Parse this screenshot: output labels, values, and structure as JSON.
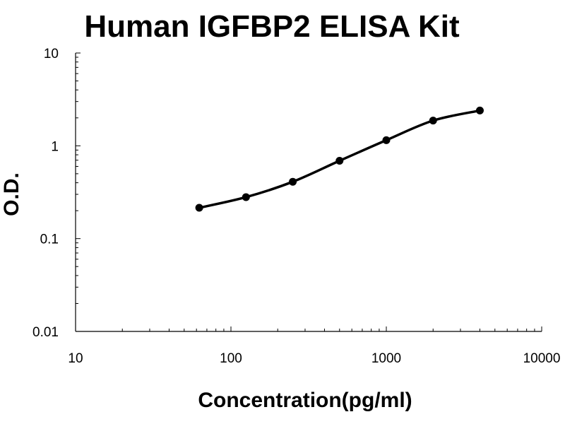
{
  "chart_data": {
    "type": "line",
    "title": "Human IGFBP2 ELISA Kit",
    "xlabel": "Concentration(pg/ml)",
    "ylabel": "O.D.",
    "x_scale": "log",
    "y_scale": "log",
    "xlim": [
      10,
      10000
    ],
    "ylim": [
      0.01,
      10
    ],
    "x_ticks": [
      "10",
      "100",
      "1000",
      "10000"
    ],
    "y_ticks": [
      "0.01",
      "0.1",
      "1",
      "10"
    ],
    "grid": false,
    "legend": "none",
    "series": [
      {
        "x": [
          62.5,
          125,
          250,
          500,
          1000,
          2000,
          4000
        ],
        "y": [
          0.215,
          0.28,
          0.41,
          0.69,
          1.15,
          1.87,
          2.4
        ],
        "color": "#000000"
      }
    ]
  }
}
